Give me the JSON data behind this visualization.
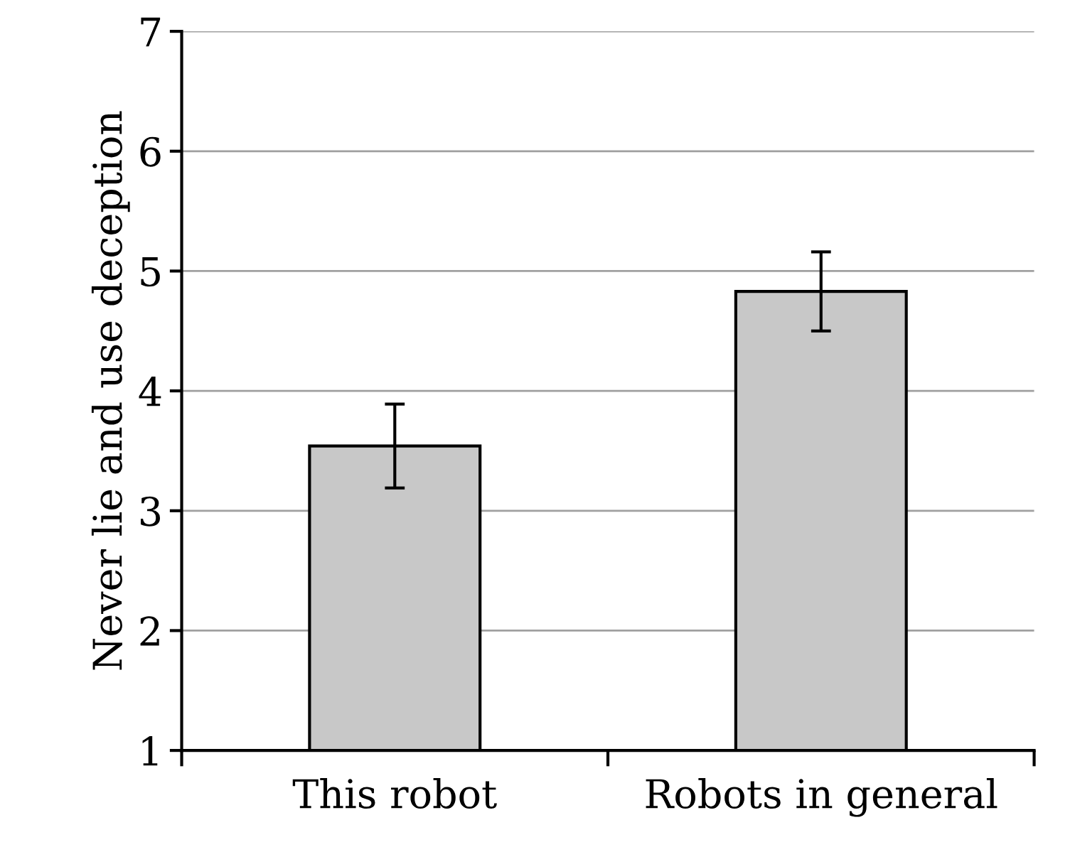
{
  "chart_data": {
    "type": "bar",
    "ylabel": "Never lie and use deception",
    "categories": [
      "This robot",
      "Robots in general"
    ],
    "values": [
      3.54,
      4.83
    ],
    "errors": [
      0.35,
      0.33
    ],
    "color": "#c8c8c8",
    "ylim": [
      1,
      7
    ],
    "yticks": [
      1,
      2,
      3,
      4,
      5,
      6,
      7
    ],
    "grid": "y",
    "legend": false
  }
}
